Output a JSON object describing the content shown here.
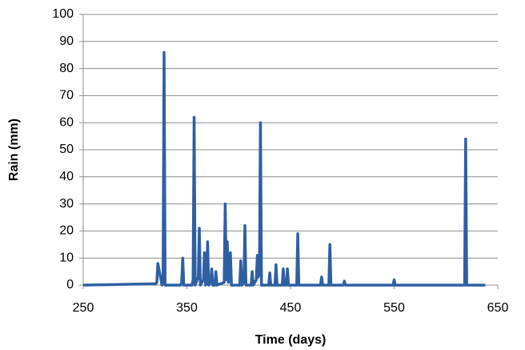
{
  "chart_data": {
    "type": "line",
    "x_label": "Time (days)",
    "y_label": "Rain (mm)",
    "x": [
      250,
      320,
      321,
      322,
      326,
      327,
      328,
      329,
      344,
      345,
      346,
      347,
      355,
      356,
      357,
      358,
      361,
      362,
      363,
      366,
      367,
      368,
      369,
      370,
      371,
      373,
      374,
      375,
      377,
      378,
      379,
      386,
      387,
      388,
      389,
      390,
      391,
      392,
      393,
      401,
      402,
      403,
      405,
      406,
      407,
      412,
      413,
      414,
      417,
      418,
      419,
      420,
      421,
      422,
      429,
      430,
      431,
      435,
      436,
      437,
      442,
      443,
      444,
      446,
      447,
      448,
      456,
      457,
      458,
      479,
      480,
      481,
      487,
      488,
      489,
      501,
      502,
      503,
      549,
      550,
      551,
      618,
      619,
      620,
      638
    ],
    "values": [
      0,
      0.5,
      1,
      8,
      0,
      1,
      86,
      0,
      0,
      1,
      10,
      0,
      0,
      2,
      62,
      0,
      3,
      21,
      0,
      2,
      12,
      0,
      1,
      16,
      0,
      1,
      6,
      0,
      0,
      5,
      0,
      1,
      30,
      2,
      16,
      1,
      2,
      12,
      0,
      0,
      9,
      0,
      1,
      22,
      0,
      0,
      5,
      0,
      2,
      11,
      3,
      5,
      60,
      0,
      0,
      4.5,
      0,
      0,
      7.5,
      0,
      0,
      6,
      0,
      0,
      6,
      0,
      0,
      19,
      0,
      0,
      3,
      0,
      0,
      15,
      0,
      0,
      1.5,
      0,
      0,
      2,
      0,
      0,
      54,
      0,
      0
    ],
    "color": "#2e5fa3",
    "xlim": [
      250,
      650
    ],
    "xticks": [
      250,
      350,
      450,
      550,
      650
    ],
    "ylim": [
      0,
      100
    ],
    "yticks": [
      0,
      10,
      20,
      30,
      40,
      50,
      60,
      70,
      80,
      90,
      100
    ],
    "grid": true
  }
}
